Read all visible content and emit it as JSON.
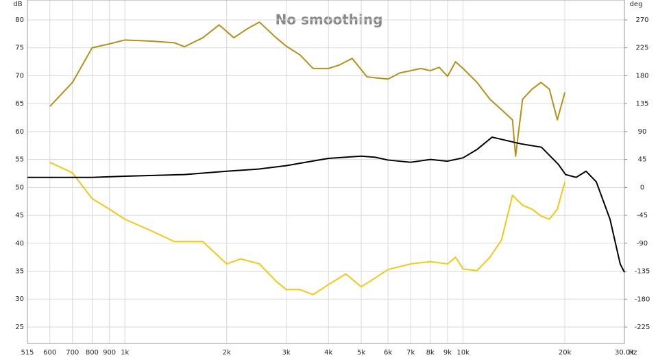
{
  "chart_data": {
    "type": "line",
    "title": "No smoothing",
    "y_label": "dB",
    "y2_label": "deg",
    "x_label": "Hz",
    "log_x": true,
    "grid": true,
    "xlim": [
      515,
      30000
    ],
    "xticks": [
      515,
      600,
      700,
      800,
      900,
      {
        "value": 1000,
        "label": "1k"
      },
      {
        "value": 2000,
        "label": "2k"
      },
      {
        "value": 3000,
        "label": "3k"
      },
      {
        "value": 4000,
        "label": "4k"
      },
      {
        "value": 5000,
        "label": "5k"
      },
      {
        "value": 6000,
        "label": "6k"
      },
      {
        "value": 7000,
        "label": "7k"
      },
      {
        "value": 8000,
        "label": "8k"
      },
      {
        "value": 9000,
        "label": "9k"
      },
      {
        "value": 10000,
        "label": "10k"
      },
      {
        "value": 20000,
        "label": "20k"
      },
      {
        "value": 30000,
        "label": "30.0k"
      }
    ],
    "ylim": [
      22.05,
      83.56
    ],
    "yticks": [
      25,
      30,
      35,
      40,
      45,
      50,
      55,
      60,
      65,
      70,
      75,
      80
    ],
    "y2lim": [
      -251.5,
      302
    ],
    "y2ticks": [
      -225,
      -180,
      -135,
      -90,
      -45,
      0,
      45,
      90,
      135,
      180,
      225,
      270
    ],
    "series": [
      {
        "color": "#b59018",
        "x": [
          600,
          700,
          800,
          900,
          1000,
          1200,
          1400,
          1500,
          1700,
          1900,
          2100,
          2300,
          2500,
          2800,
          3000,
          3300,
          3600,
          4000,
          4300,
          4700,
          5200,
          6000,
          6500,
          7000,
          7500,
          8000,
          8500,
          9000,
          9500,
          10000,
          11000,
          12000,
          13000,
          14000,
          14300,
          15000,
          16000,
          17000,
          18000,
          19000,
          20000
        ],
        "values": [
          64.5,
          68.8,
          75,
          75.7,
          76.4,
          76.2,
          75.9,
          75.2,
          76.8,
          79.1,
          76.8,
          78.4,
          79.6,
          76.8,
          75.3,
          73.7,
          71.3,
          71.3,
          71.9,
          73.1,
          69.8,
          69.4,
          70.5,
          70.9,
          71.3,
          70.9,
          71.5,
          69.9,
          72.5,
          71.3,
          68.8,
          65.8,
          63.9,
          62.1,
          55.6,
          65.8,
          67.6,
          68.8,
          67.6,
          62.1,
          67.0
        ]
      },
      {
        "color": "#f2c816",
        "x": [
          600,
          700,
          800,
          900,
          1000,
          1200,
          1400,
          1700,
          2000,
          2200,
          2500,
          2800,
          3000,
          3300,
          3600,
          4000,
          4500,
          5000,
          5500,
          6000,
          7000,
          8000,
          9000,
          9500,
          10000,
          11000,
          12000,
          13000,
          14000,
          15000,
          16000,
          17000,
          18000,
          19000,
          20000
        ],
        "values": [
          54.5,
          52.6,
          48.0,
          46.1,
          44.3,
          42.2,
          40.3,
          40.3,
          36.3,
          37.2,
          36.3,
          33.2,
          31.7,
          31.7,
          30.8,
          32.6,
          34.5,
          32.2,
          33.8,
          35.3,
          36.3,
          36.7,
          36.3,
          37.5,
          35.4,
          35.1,
          37.5,
          40.6,
          48.6,
          46.8,
          46.1,
          44.9,
          44.3,
          46.1,
          51.0
        ]
      },
      {
        "color": "#000000",
        "x": [
          515,
          600,
          800,
          1000,
          1500,
          2000,
          2500,
          3000,
          3500,
          4000,
          5000,
          5500,
          6000,
          7000,
          8000,
          9000,
          10000,
          11000,
          12185,
          14830,
          17050,
          19150,
          20100,
          21600,
          23100,
          24770,
          27200,
          29150,
          30000
        ],
        "values": [
          51.8,
          51.8,
          51.8,
          52.0,
          52.3,
          52.9,
          53.3,
          53.9,
          54.6,
          55.2,
          55.6,
          55.4,
          54.9,
          54.5,
          55.0,
          54.7,
          55.3,
          56.8,
          59.0,
          57.8,
          57.2,
          54.1,
          52.3,
          51.8,
          52.9,
          51.0,
          44.3,
          36.3,
          34.8
        ]
      }
    ]
  }
}
